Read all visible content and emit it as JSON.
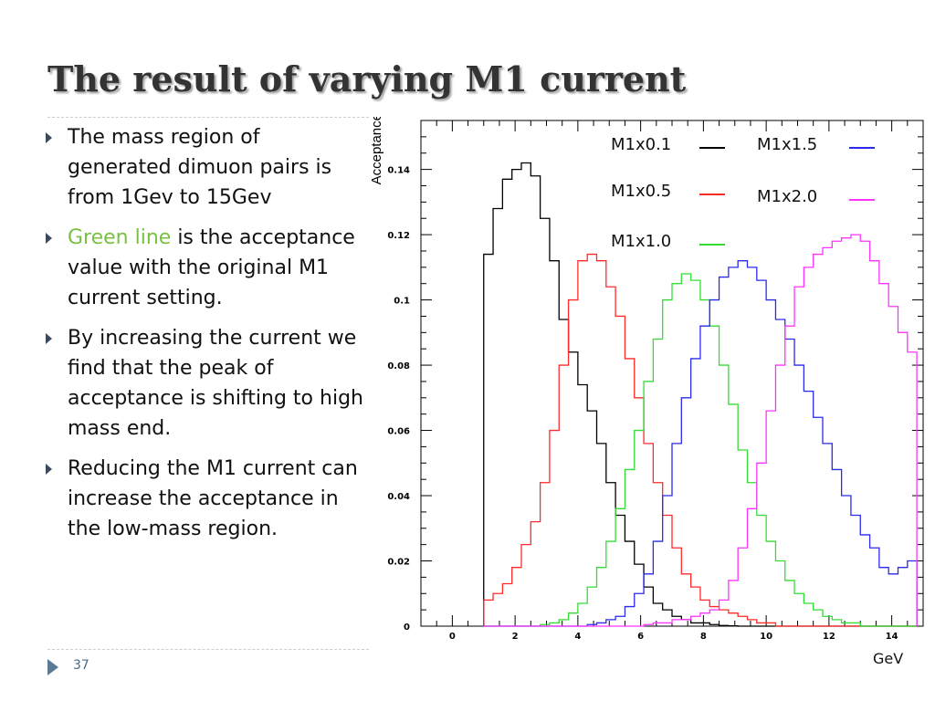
{
  "slide": {
    "title": "The result of varying M1 current",
    "bullets": [
      {
        "text": "The mass region of generated dimuon pairs is from 1Gev to 15Gev"
      },
      {
        "highlight": "Green line",
        "text": " is the acceptance value with the original M1 current setting."
      },
      {
        "text": "By increasing the current we find that the peak of acceptance is shifting to high mass end."
      },
      {
        "text": "Reducing the M1 current can increase the acceptance in the low-mass region."
      }
    ],
    "page_number": "37"
  },
  "chart_data": {
    "type": "line",
    "title": "",
    "xlabel": "GeV",
    "ylabel": "Acceptance",
    "xlim": [
      -1,
      15
    ],
    "ylim": [
      0,
      0.155
    ],
    "x_ticks": [
      0,
      2,
      4,
      6,
      8,
      10,
      12,
      14
    ],
    "y_ticks": [
      0,
      0.02,
      0.04,
      0.06,
      0.08,
      0.1,
      0.12,
      0.14
    ],
    "x_tick_labels": [
      "0",
      "2",
      "4",
      "6",
      "8",
      "10",
      "12",
      "14"
    ],
    "y_tick_labels": [
      "0",
      "0.02",
      "0.04",
      "0.06",
      "0.08",
      "0.1",
      "0.12",
      "0.14"
    ],
    "bin_width": 0.3,
    "x": [
      1.0,
      1.3,
      1.6,
      1.9,
      2.2,
      2.5,
      2.8,
      3.1,
      3.4,
      3.7,
      4.0,
      4.3,
      4.6,
      4.9,
      5.2,
      5.5,
      5.8,
      6.1,
      6.4,
      6.7,
      7.0,
      7.3,
      7.6,
      7.9,
      8.2,
      8.5,
      8.8,
      9.1,
      9.4,
      9.7,
      10.0,
      10.3,
      10.6,
      10.9,
      11.2,
      11.5,
      11.8,
      12.1,
      12.4,
      12.7,
      13.0,
      13.3,
      13.6,
      13.9,
      14.2,
      14.5
    ],
    "series": [
      {
        "name": "M1x0.1",
        "color": "#000000",
        "values": [
          0.114,
          0.128,
          0.137,
          0.14,
          0.142,
          0.138,
          0.125,
          0.112,
          0.094,
          0.084,
          0.074,
          0.066,
          0.056,
          0.044,
          0.034,
          0.026,
          0.019,
          0.012,
          0.007,
          0.005,
          0.003,
          0.002,
          0.001,
          0.001,
          0.0005,
          0.0002,
          0.0001,
          0.0,
          0.0,
          0.0,
          0.0,
          0.0,
          0.0,
          0.0,
          0.0,
          0.0,
          0.0,
          0.0,
          0.0,
          0.0,
          0.0,
          0.0,
          0.0,
          0.0,
          0.0,
          0.0
        ]
      },
      {
        "name": "M1x0.5",
        "color": "#ff2a2a",
        "values": [
          0.008,
          0.01,
          0.013,
          0.018,
          0.025,
          0.032,
          0.044,
          0.06,
          0.08,
          0.1,
          0.112,
          0.114,
          0.112,
          0.104,
          0.095,
          0.082,
          0.07,
          0.056,
          0.044,
          0.034,
          0.024,
          0.016,
          0.012,
          0.008,
          0.006,
          0.005,
          0.004,
          0.003,
          0.002,
          0.001,
          0.001,
          0.0,
          0.0,
          0.0,
          0.0,
          0.0,
          0.0,
          0.0,
          0.0,
          0.0,
          0.0,
          0.0,
          0.0,
          0.0,
          0.0,
          0.0
        ]
      },
      {
        "name": "M1x1.0",
        "color": "#33dd33",
        "values": [
          0.0,
          0.0,
          0.0,
          0.0,
          0.0,
          0.0,
          0.0005,
          0.001,
          0.002,
          0.004,
          0.007,
          0.012,
          0.018,
          0.026,
          0.036,
          0.048,
          0.06,
          0.075,
          0.088,
          0.1,
          0.105,
          0.108,
          0.106,
          0.1,
          0.092,
          0.08,
          0.068,
          0.054,
          0.044,
          0.034,
          0.026,
          0.02,
          0.014,
          0.01,
          0.007,
          0.005,
          0.003,
          0.002,
          0.001,
          0.001,
          0.0,
          0.0,
          0.0,
          0.0,
          0.0,
          0.0
        ]
      },
      {
        "name": "M1x1.5",
        "color": "#2a2aee",
        "values": [
          0.0,
          0.0,
          0.0,
          0.0,
          0.0,
          0.0,
          0.0,
          0.0,
          0.0,
          0.0,
          0.0,
          0.0005,
          0.001,
          0.002,
          0.003,
          0.006,
          0.01,
          0.016,
          0.026,
          0.04,
          0.056,
          0.07,
          0.082,
          0.092,
          0.1,
          0.107,
          0.11,
          0.112,
          0.11,
          0.106,
          0.1,
          0.094,
          0.088,
          0.08,
          0.072,
          0.064,
          0.056,
          0.048,
          0.04,
          0.034,
          0.028,
          0.024,
          0.018,
          0.016,
          0.018,
          0.02
        ]
      },
      {
        "name": "M1x2.0",
        "color": "#ff33ff",
        "values": [
          0.0,
          0.0,
          0.0,
          0.0,
          0.0,
          0.0,
          0.0,
          0.0,
          0.0,
          0.0,
          0.0,
          0.0,
          0.0,
          0.0,
          0.0,
          0.0,
          0.0,
          0.0005,
          0.001,
          0.001,
          0.002,
          0.002,
          0.003,
          0.004,
          0.005,
          0.008,
          0.014,
          0.024,
          0.036,
          0.05,
          0.066,
          0.08,
          0.092,
          0.104,
          0.11,
          0.114,
          0.116,
          0.118,
          0.119,
          0.12,
          0.118,
          0.112,
          0.105,
          0.098,
          0.09,
          0.084
        ]
      }
    ],
    "legend_position": "top-right",
    "grid": false
  }
}
